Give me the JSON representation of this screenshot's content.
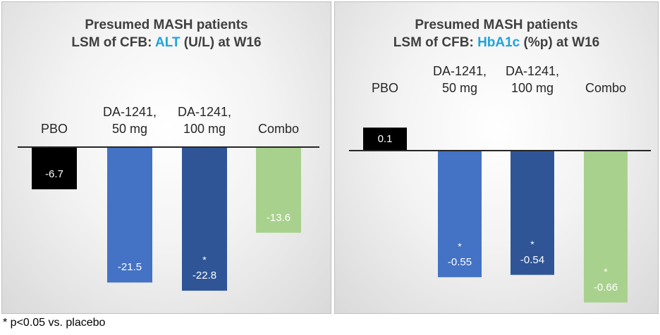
{
  "footnote": "* p<0.05 vs. placebo",
  "colors": {
    "pbo": "#000000",
    "da50": "#4472c4",
    "da100": "#2f5597",
    "combo": "#a9d18e",
    "highlight": "#1fa3dd"
  },
  "chart_data": [
    {
      "type": "bar",
      "title_line1": "Presumed MASH patients",
      "title_prefix": "LSM of CFB: ",
      "title_highlight": "ALT",
      "title_suffix": " (U/L) at W16",
      "categories": [
        {
          "line1": "PBO",
          "line2": ""
        },
        {
          "line1": "DA-1241,",
          "line2": "50 mg"
        },
        {
          "line1": "DA-1241,",
          "line2": "100 mg"
        },
        {
          "line1": "Combo",
          "line2": ""
        }
      ],
      "values": [
        -6.7,
        -21.5,
        -22.8,
        -13.6
      ],
      "value_labels": [
        "-6.7",
        "-21.5",
        "-22.8",
        "-13.6"
      ],
      "significant": [
        false,
        false,
        true,
        false
      ],
      "ylim": [
        -24.5,
        0
      ]
    },
    {
      "type": "bar",
      "title_line1": "Presumed MASH patients",
      "title_prefix": "LSM of CFB: ",
      "title_highlight": "HbA1c",
      "title_suffix": " (%p) at W16",
      "categories": [
        {
          "line1": "PBO",
          "line2": ""
        },
        {
          "line1": "DA-1241,",
          "line2": "50 mg"
        },
        {
          "line1": "DA-1241,",
          "line2": "100 mg"
        },
        {
          "line1": "Combo",
          "line2": ""
        }
      ],
      "values": [
        0.1,
        -0.55,
        -0.54,
        -0.66
      ],
      "value_labels": [
        "0.1",
        "-0.55",
        "-0.54",
        "-0.66"
      ],
      "significant": [
        false,
        true,
        true,
        true
      ],
      "ylim": [
        -0.7,
        0.1
      ]
    }
  ]
}
